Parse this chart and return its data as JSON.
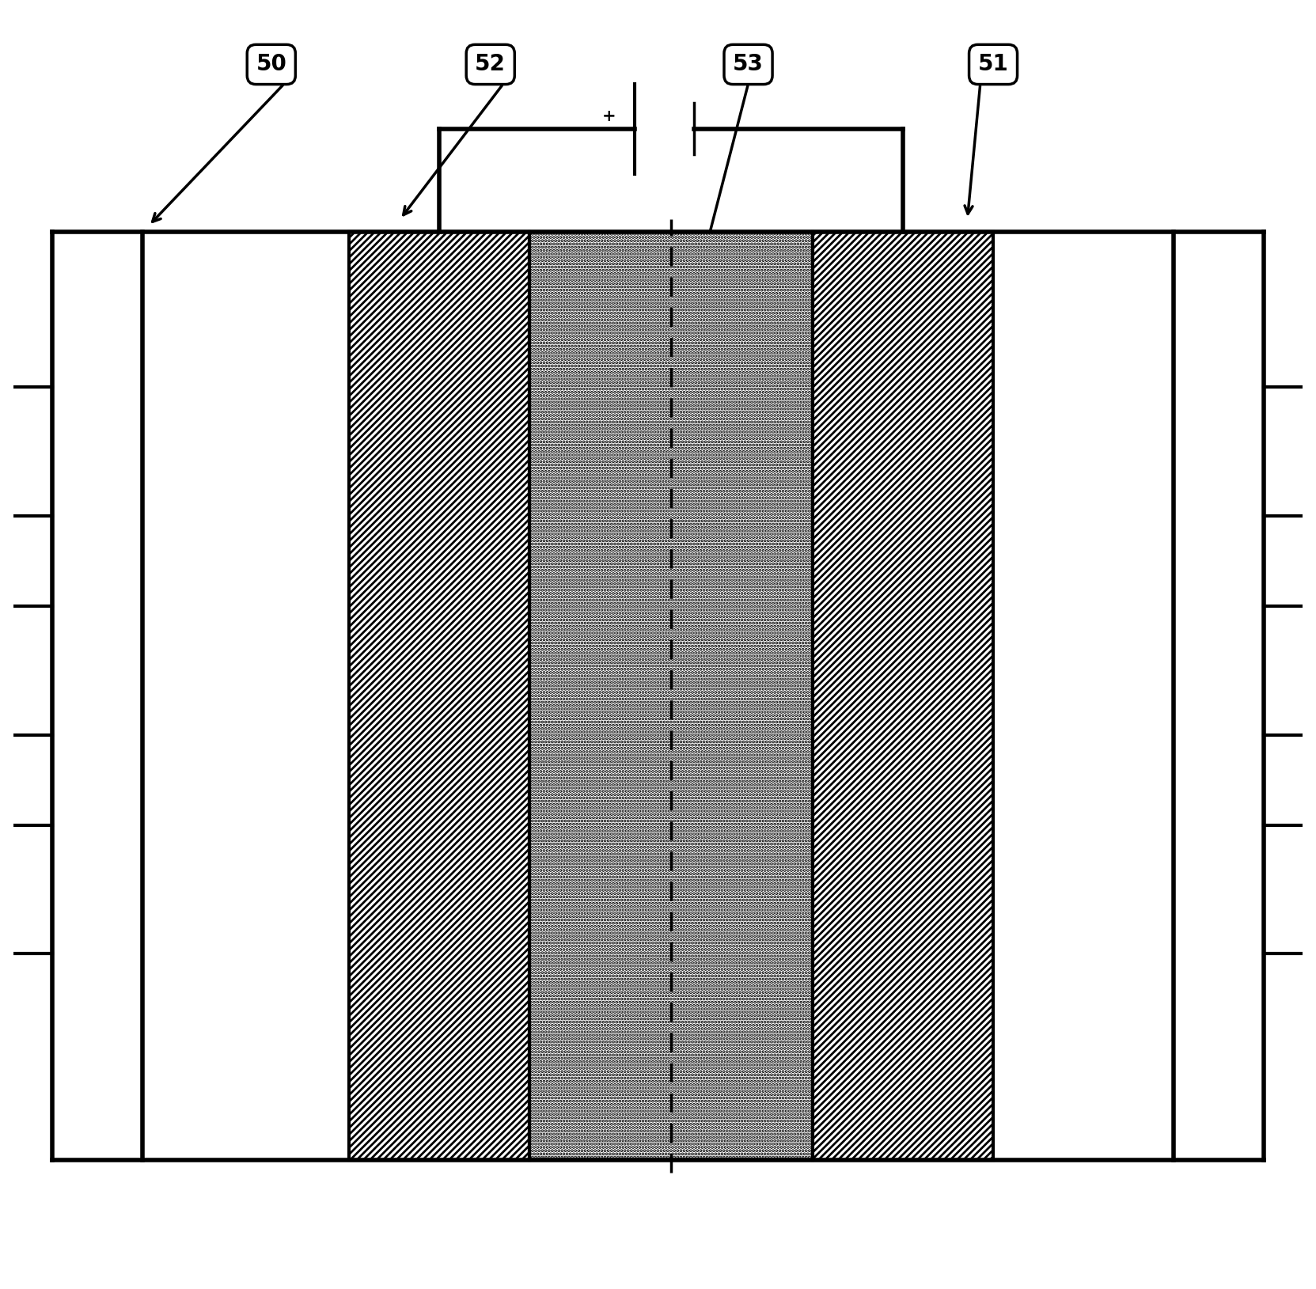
{
  "bg_color": "#ffffff",
  "line_color": "#000000",
  "label_50": "50",
  "label_51": "51",
  "label_52": "52",
  "label_53": "53",
  "fig_width": 16.63,
  "fig_height": 16.29
}
